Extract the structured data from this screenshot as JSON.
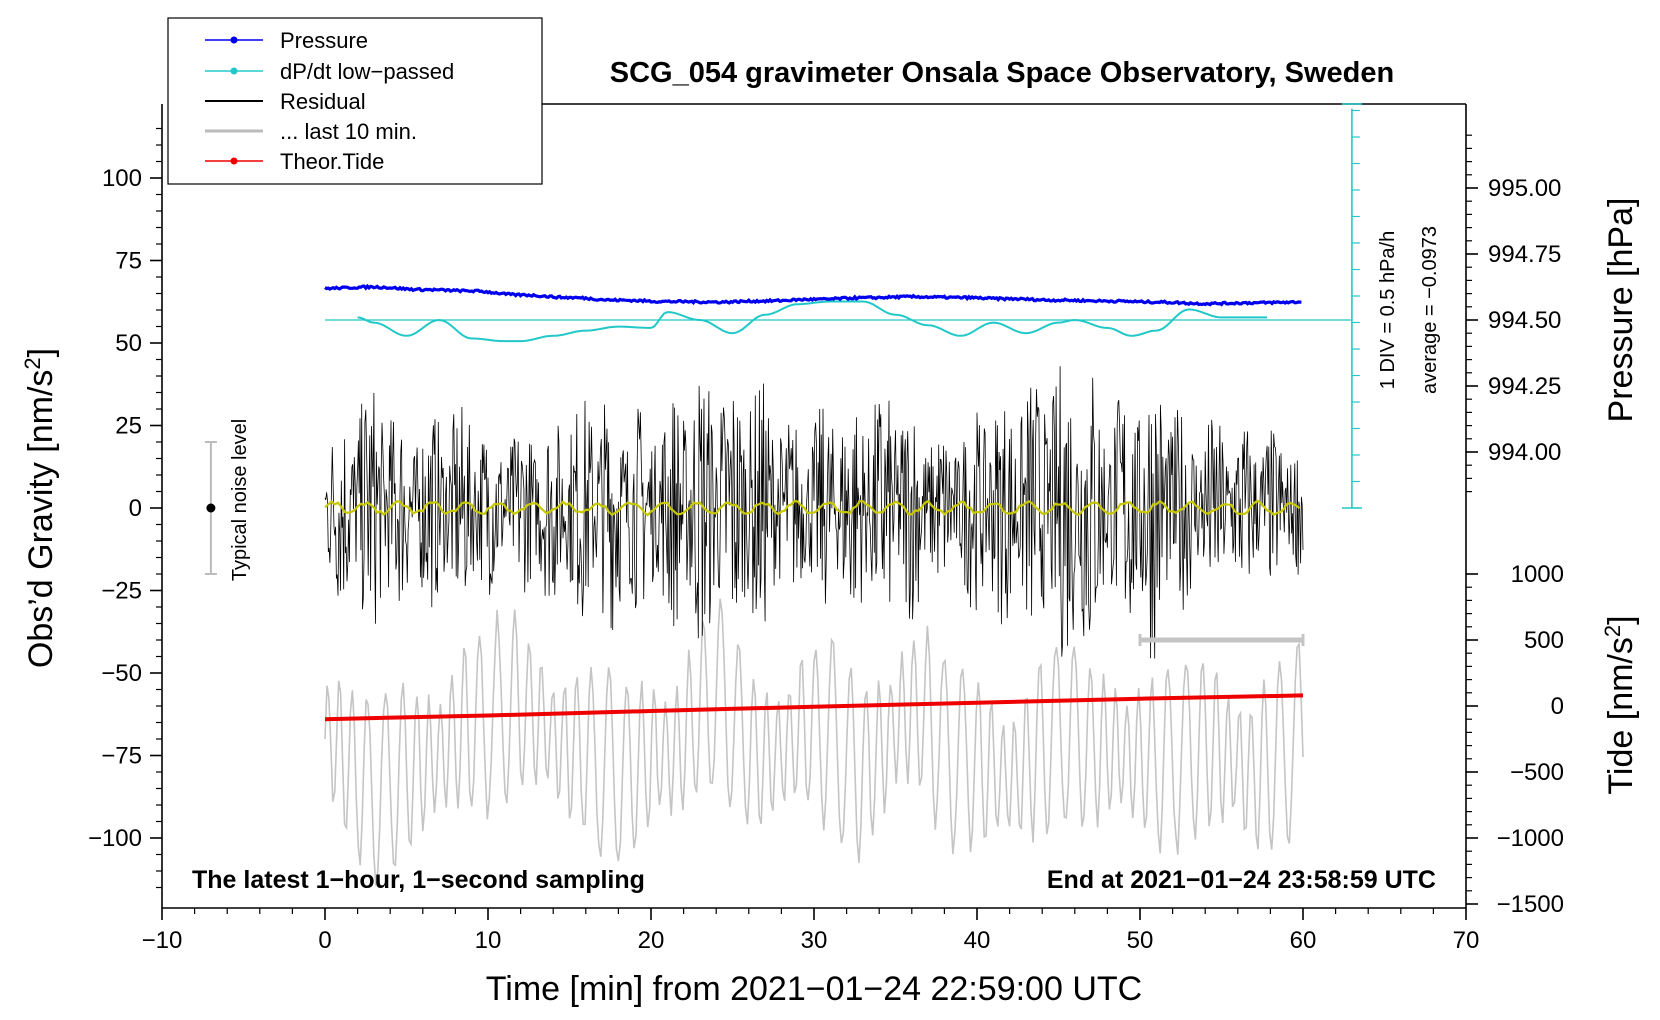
{
  "chart_data": {
    "type": "line",
    "title": "SCG_054 gravimeter Onsala Space Observatory, Sweden",
    "xlabel": "Time [min] from 2021−01−24 22:59:00 UTC",
    "ylabel_left": "Obs’d Gravity [nm/s",
    "ylabel_left_sup": "2",
    "ylabel_left_end": "]",
    "ylabel_right_pressure": "Pressure [hPa]",
    "ylabel_right_tide": "Tide [nm/s",
    "ylabel_right_tide_sup": "2",
    "ylabel_right_tide_end": "]",
    "xlim": [
      -10,
      70
    ],
    "ylim_gravity": [
      -120,
      120
    ],
    "ylim_pressure": [
      993.8,
      995.3
    ],
    "ylim_tide": [
      -1500,
      1000
    ],
    "x_ticks": [
      "−10",
      "0",
      "10",
      "20",
      "30",
      "40",
      "50",
      "60",
      "70"
    ],
    "x_tick_values": [
      -10,
      0,
      10,
      20,
      30,
      40,
      50,
      60,
      70
    ],
    "gravity_ticks": [
      "100",
      "75",
      "50",
      "25",
      "0",
      "−25",
      "−50",
      "−75",
      "−100"
    ],
    "gravity_tick_values": [
      100,
      75,
      50,
      25,
      0,
      -25,
      -50,
      -75,
      -100
    ],
    "pressure_ticks": [
      "995.00",
      "994.75",
      "994.50",
      "994.25",
      "994.00"
    ],
    "pressure_tick_values": [
      995.0,
      994.75,
      994.5,
      994.25,
      994.0
    ],
    "tide_ticks": [
      "1000",
      "500",
      "0",
      "−500",
      "−1000",
      "−1500"
    ],
    "tide_tick_values": [
      1000,
      500,
      0,
      -500,
      -1000,
      -1500
    ],
    "note_left": "The latest 1−hour, 1−second sampling",
    "note_right": "End at 2021−01−24 23:58:59 UTC",
    "noise_label": "Typical noise level",
    "noise_level": [
      -20,
      20
    ],
    "dpdt_scale_label": "1 DIV = 0.5 hPa/h",
    "dpdt_average_label": "average = −0.0973",
    "dpdt_baseline_pressure": 994.5,
    "last10_range_min": [
      50,
      60
    ],
    "legend": [
      {
        "label": "Pressure",
        "color": "#0000ee",
        "marker": true
      },
      {
        "label": "dP/dt low−passed",
        "color": "#22c8c8",
        "marker": true
      },
      {
        "label": "Residual",
        "color": "#000000",
        "marker": false
      },
      {
        "label": "... last 10 min.",
        "color": "#bbbbbb",
        "marker": false
      },
      {
        "label": "Theor.Tide",
        "color": "#ee0000",
        "marker": true
      }
    ],
    "series": [
      {
        "name": "Pressure",
        "unit": "hPa",
        "x": [
          0,
          3,
          6,
          9,
          12,
          15,
          18,
          21,
          24,
          27,
          30,
          33,
          36,
          39,
          42,
          45,
          48,
          51,
          54,
          57,
          60
        ],
        "values": [
          994.62,
          994.625,
          994.615,
          994.61,
          994.595,
          994.585,
          994.575,
          994.57,
          994.568,
          994.572,
          994.578,
          994.584,
          994.588,
          994.585,
          994.58,
          994.575,
          994.572,
          994.568,
          994.562,
          994.565,
          994.568
        ]
      },
      {
        "name": "dP/dt low-passed",
        "unit": "hPa (plotted about 994.50 baseline)",
        "x": [
          2,
          3,
          5,
          7,
          9,
          11,
          12,
          14,
          16,
          18,
          20,
          21,
          23,
          25,
          27,
          29,
          31,
          33,
          35,
          37,
          39,
          41,
          43,
          45,
          46,
          48,
          49.5,
          51,
          53,
          55,
          58
        ],
        "values": [
          994.51,
          994.49,
          994.44,
          994.5,
          994.43,
          994.42,
          994.42,
          994.44,
          994.46,
          994.475,
          994.47,
          994.53,
          994.5,
          994.45,
          994.52,
          994.56,
          994.57,
          994.57,
          994.52,
          994.48,
          994.44,
          994.49,
          994.45,
          994.49,
          994.5,
          994.47,
          994.44,
          994.46,
          994.54,
          994.51,
          994.51
        ]
      },
      {
        "name": "Residual envelope",
        "unit": "nm/s2",
        "x": [
          0,
          3,
          5,
          8,
          11,
          14,
          17,
          20,
          23,
          26,
          29,
          32,
          35,
          38,
          41,
          44,
          46.5,
          48,
          50.5,
          53,
          56,
          60
        ],
        "values": [
          28,
          40,
          30,
          32,
          25,
          30,
          38,
          32,
          45,
          42,
          28,
          35,
          38,
          25,
          35,
          42,
          52,
          35,
          48,
          30,
          28,
          22
        ]
      },
      {
        "name": "last 10 min",
        "unit": "nm/s2 (overlay on gravity axis)",
        "x": [
          0,
          3,
          6,
          9,
          12,
          15,
          18,
          21,
          24,
          27,
          30,
          33,
          36,
          39,
          42,
          45,
          48,
          51,
          54,
          57,
          60
        ],
        "values": [
          -70,
          -85,
          -78,
          -66,
          -60,
          -72,
          -80,
          -74,
          -58,
          -76,
          -66,
          -79,
          -61,
          -75,
          -82,
          -68,
          -73,
          -77,
          -71,
          -80,
          -70
        ]
      },
      {
        "name": "Theor.Tide",
        "unit": "nm/s2",
        "x": [
          0,
          10,
          20,
          30,
          40,
          50,
          60
        ],
        "values": [
          -100,
          -72,
          -38,
          -5,
          25,
          55,
          80
        ]
      }
    ]
  }
}
